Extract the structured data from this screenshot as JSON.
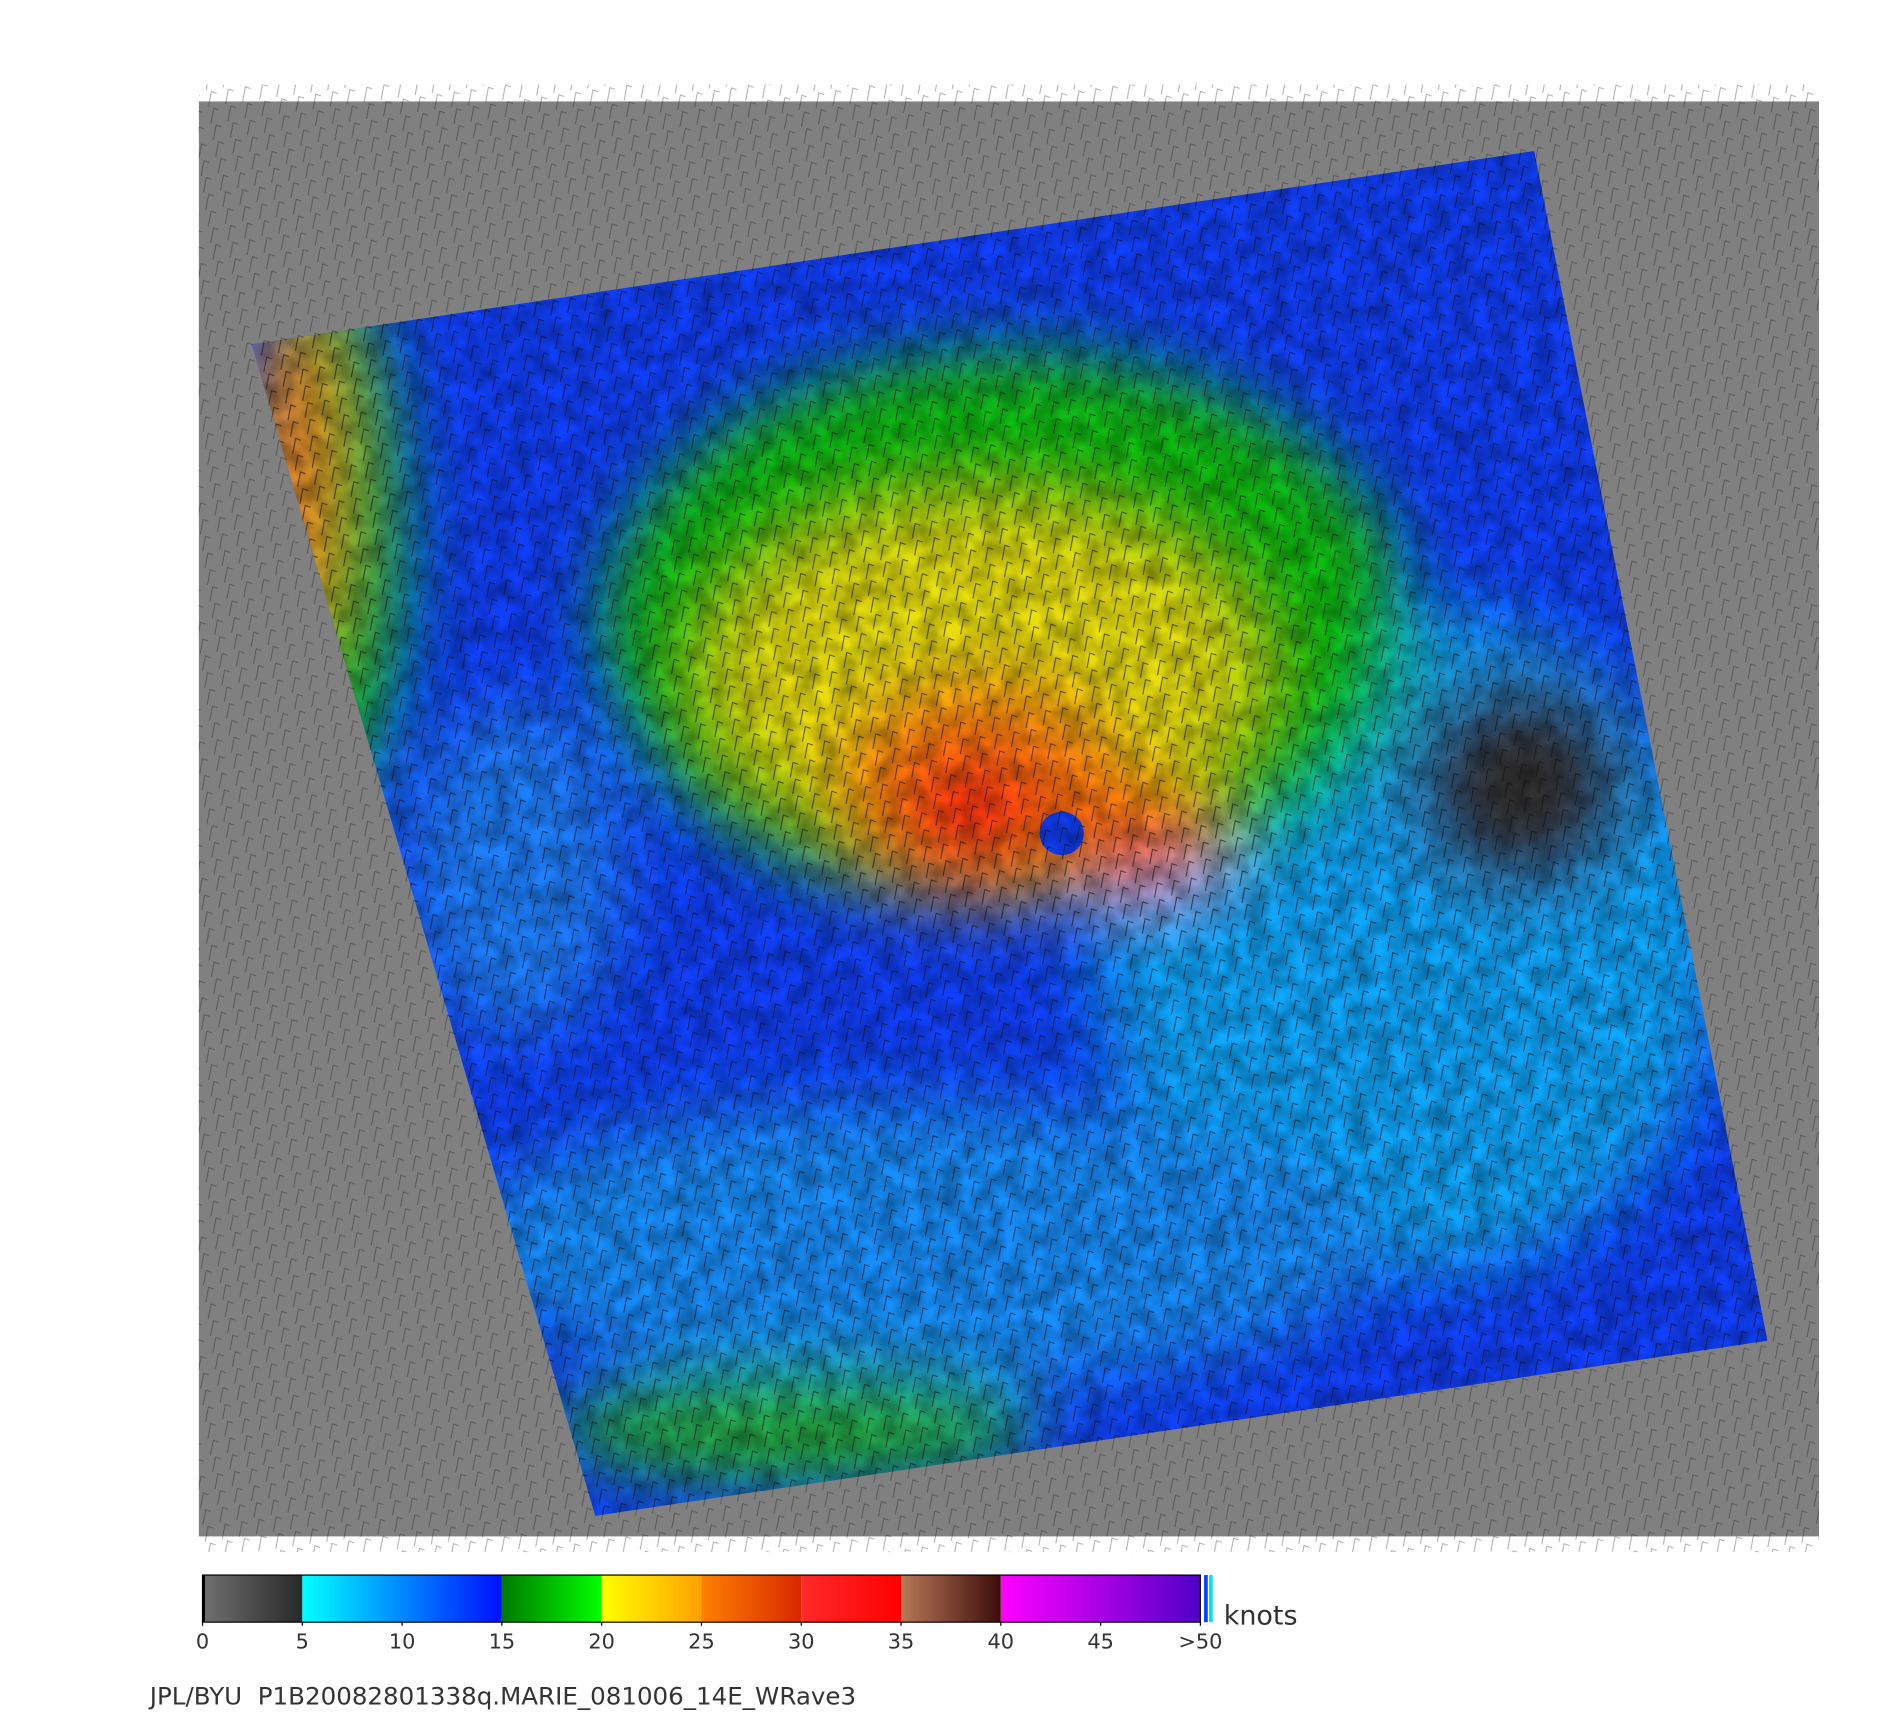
{
  "chart_data": {
    "type": "colorbar",
    "unit": "knots",
    "xlim": [
      0,
      50
    ],
    "xticks": [
      0,
      5,
      10,
      15,
      20,
      25,
      30,
      35,
      40,
      45,
      {
        "value": 50,
        "label": ">50"
      }
    ],
    "segments": [
      {
        "from": 0,
        "to": 5,
        "colors": [
          "#707070",
          "#282828"
        ]
      },
      {
        "from": 5,
        "to": 15,
        "colors": [
          "#00ffff",
          "#0010ff"
        ]
      },
      {
        "from": 15,
        "to": 20,
        "colors": [
          "#007a00",
          "#00ff00"
        ]
      },
      {
        "from": 20,
        "to": 25,
        "colors": [
          "#ffff00",
          "#ffa000"
        ]
      },
      {
        "from": 25,
        "to": 30,
        "colors": [
          "#ff8000",
          "#d82800"
        ]
      },
      {
        "from": 30,
        "to": 35,
        "colors": [
          "#ff2a2a",
          "#ff0000"
        ]
      },
      {
        "from": 35,
        "to": 40,
        "colors": [
          "#b87858",
          "#3c0c0c"
        ]
      },
      {
        "from": 40,
        "to": 50,
        "colors": [
          "#ff00ff",
          "#5000c8"
        ]
      }
    ]
  },
  "footer": "JPL/BYU  P1B20082801338q.MARIE_081006_14E_WRave3"
}
